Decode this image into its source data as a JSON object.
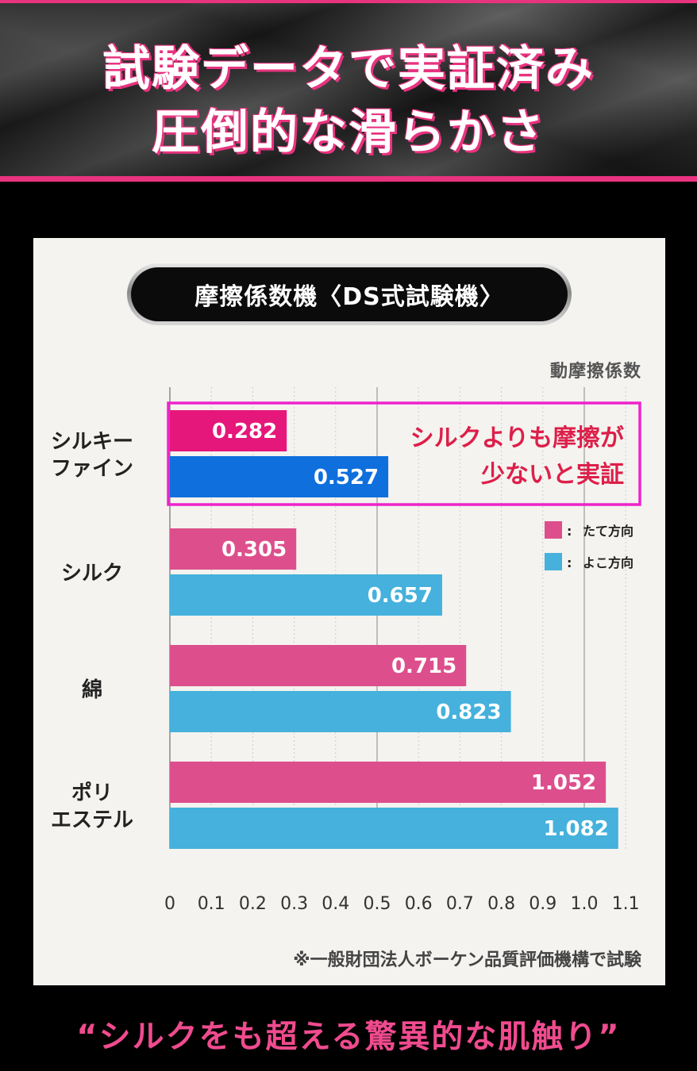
{
  "header": {
    "title_line1": "試験データで実証済み",
    "title_line2": "圧倒的な滑らかさ"
  },
  "card": {
    "pill_title": "摩擦係数機〈DS式試験機〉",
    "footnote": "※一般財団法人ボーケン品質評価機構で試験"
  },
  "tagline": "“シルクをも超える驚異的な肌触り”",
  "chart_data": {
    "type": "bar",
    "orientation": "horizontal",
    "ylabel": "動摩擦係数",
    "categories": [
      [
        "シルキー",
        "ファイン"
      ],
      [
        "シルク"
      ],
      [
        "綿"
      ],
      [
        "ポリ",
        "エステル"
      ]
    ],
    "series": [
      {
        "name": "たて方向",
        "values": [
          0.282,
          0.305,
          0.715,
          1.052
        ],
        "value_labels": [
          "0.282",
          "0.305",
          "0.715",
          "1.052"
        ]
      },
      {
        "name": "よこ方向",
        "values": [
          0.527,
          0.657,
          0.823,
          1.082
        ],
        "value_labels": [
          "0.527",
          "0.657",
          "0.823",
          "1.082"
        ]
      }
    ],
    "xlim": [
      0,
      1.1
    ],
    "ticks": [
      "0",
      "0.1",
      "0.2",
      "0.3",
      "0.4",
      "0.5",
      "0.6",
      "0.7",
      "0.8",
      "0.9",
      "1.0",
      "1.1"
    ],
    "grid": true,
    "legend_placement": "right",
    "legend_separator": ":",
    "colors": {
      "tate": "#dd4f8c",
      "yoko": "#45b1dc",
      "highlight_tate": "#e6177a",
      "highlight_yoko": "#0e6fdd",
      "highlight_frame": "#ee22cc",
      "callout_text": "#dd1f4a"
    },
    "highlight": {
      "category_index": 0,
      "callout": [
        "シルクよりも摩擦が",
        "少ないと実証"
      ]
    }
  }
}
